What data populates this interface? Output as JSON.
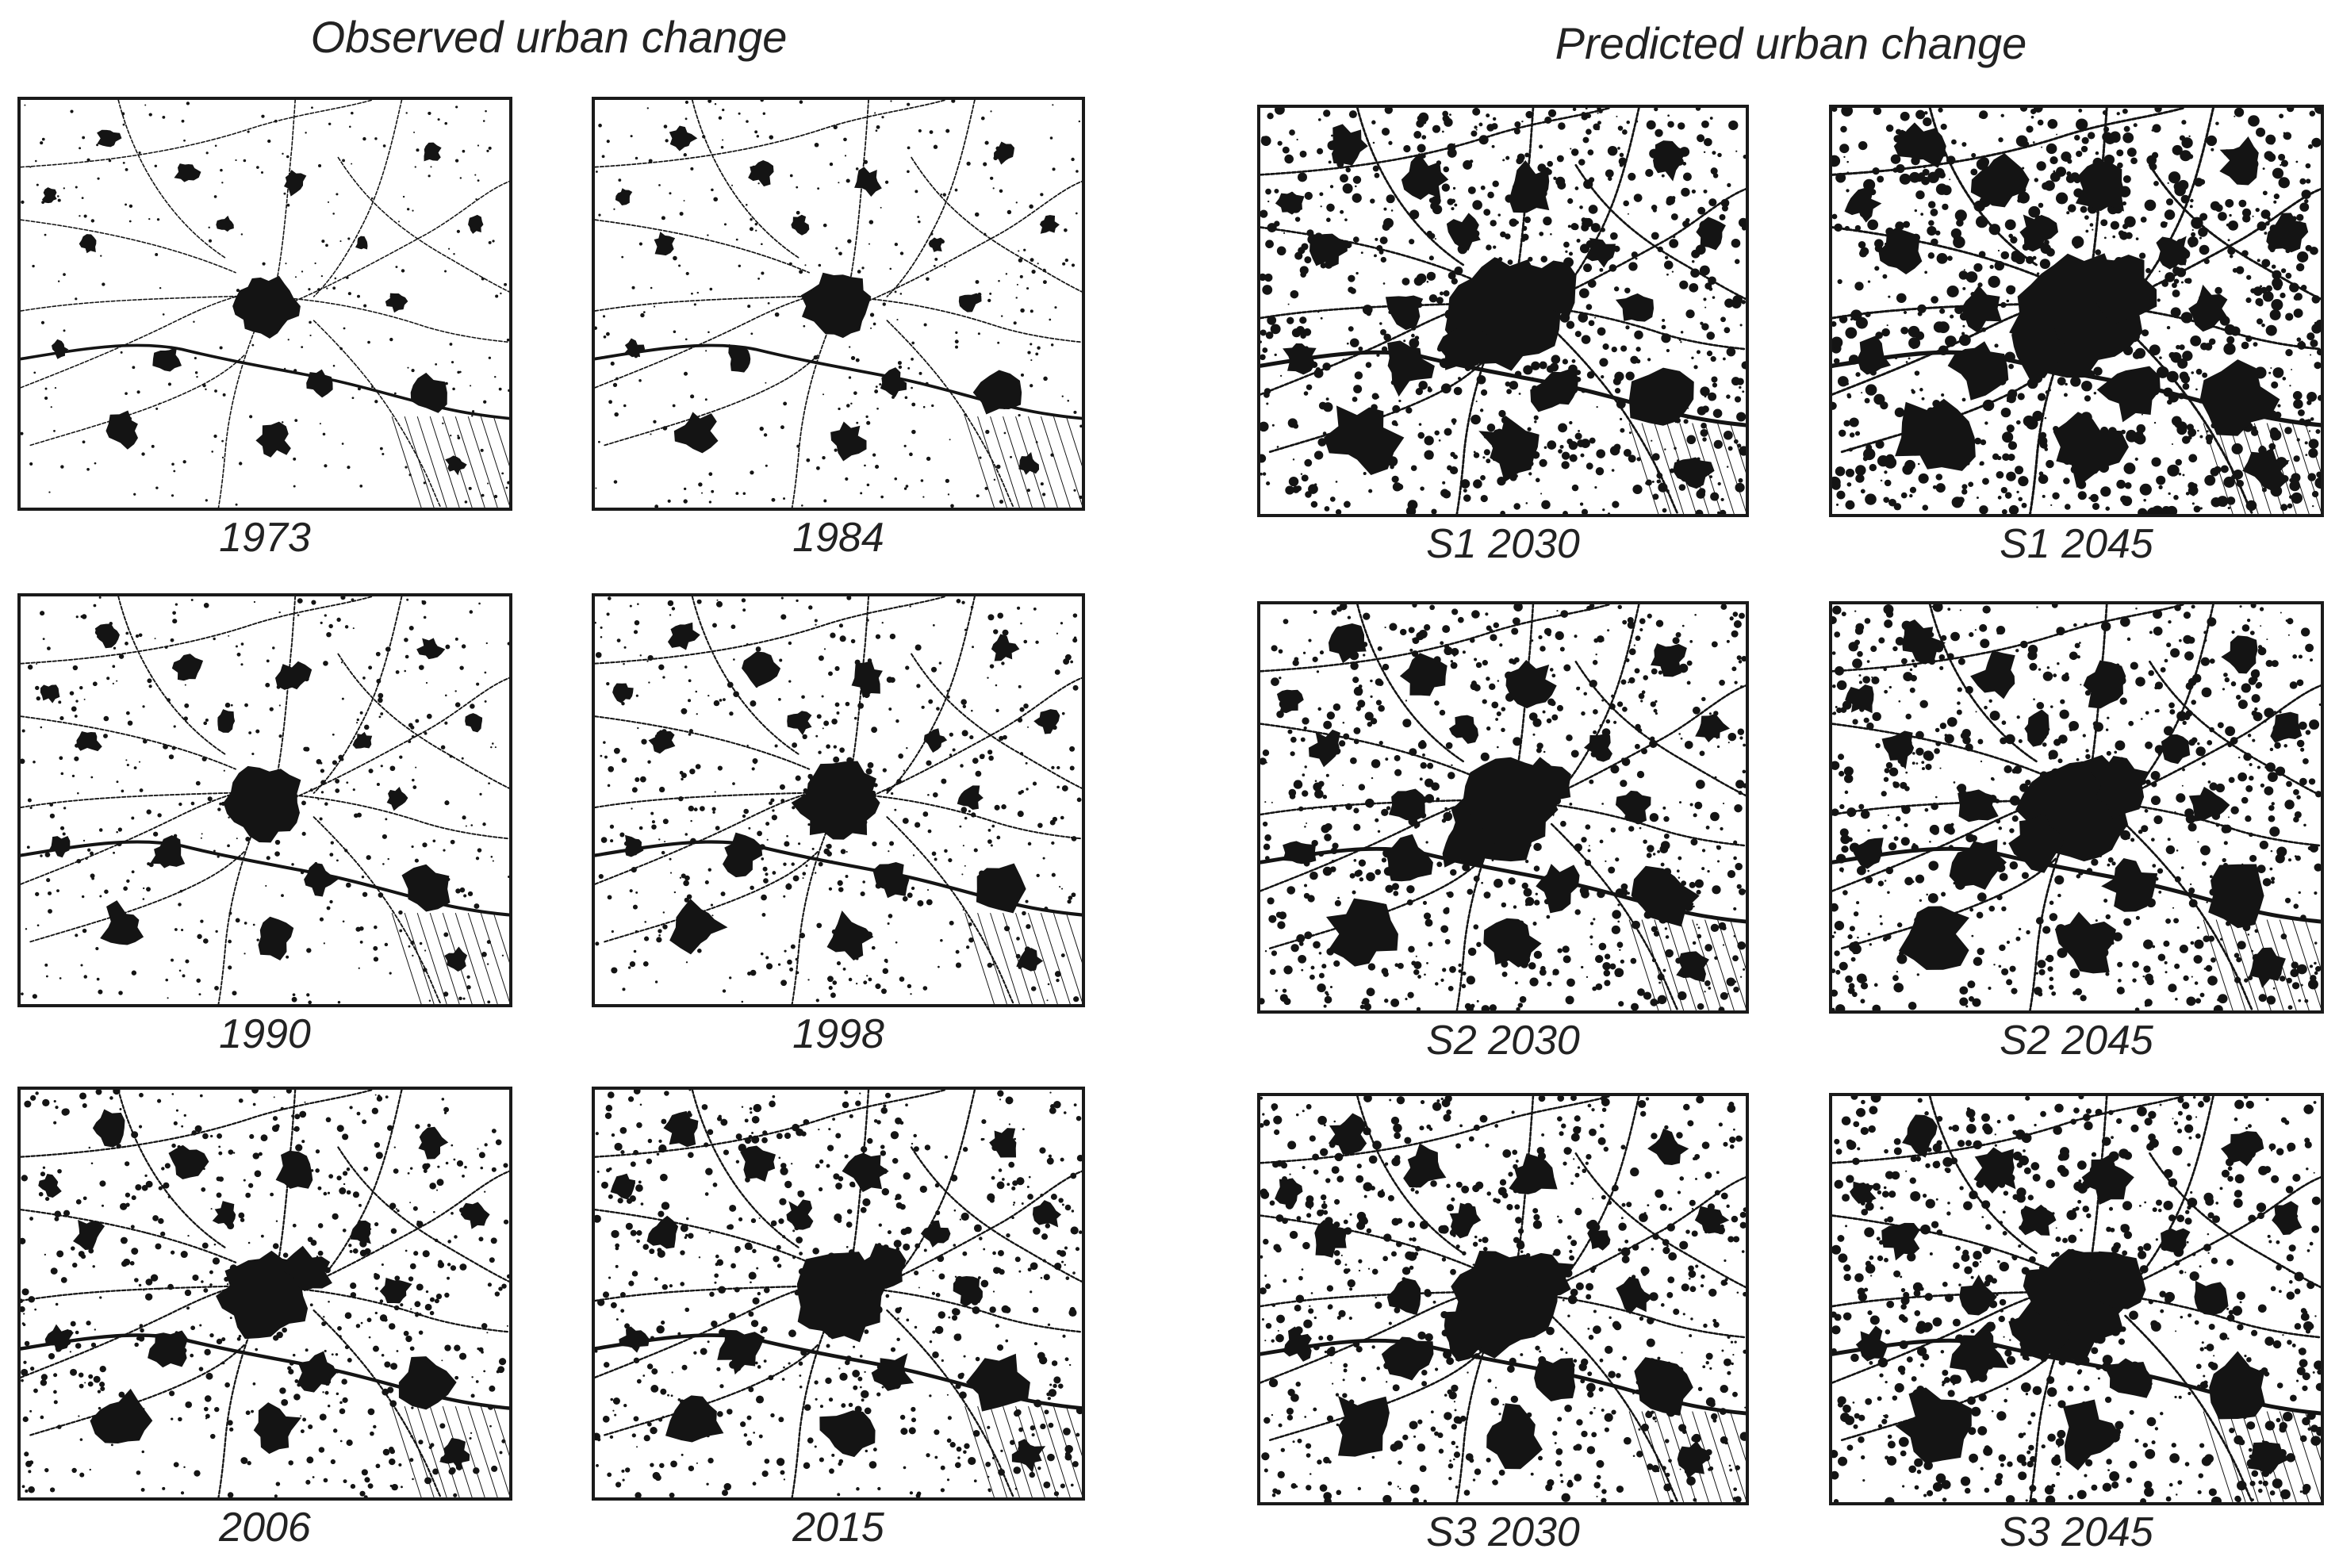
{
  "groups": {
    "observed_title": "Observed urban change",
    "predicted_title": "Predicted urban change"
  },
  "observed_panels": [
    {
      "label": "1973",
      "stage": 0
    },
    {
      "label": "1984",
      "stage": 1
    },
    {
      "label": "1990",
      "stage": 2
    },
    {
      "label": "1998",
      "stage": 3
    },
    {
      "label": "2006",
      "stage": 4
    },
    {
      "label": "2015",
      "stage": 5
    }
  ],
  "predicted_panels": [
    {
      "label": "S1 2030",
      "stage": 7
    },
    {
      "label": "S1 2045",
      "stage": 9
    },
    {
      "label": "S2 2030",
      "stage": 6
    },
    {
      "label": "S2 2045",
      "stage": 7
    },
    {
      "label": "S3 2030",
      "stage": 6
    },
    {
      "label": "S3 2045",
      "stage": 7
    }
  ],
  "colors": {
    "urban": "#141414",
    "background": "#ffffff",
    "frame": "#1a1a1a",
    "text": "#222222"
  }
}
